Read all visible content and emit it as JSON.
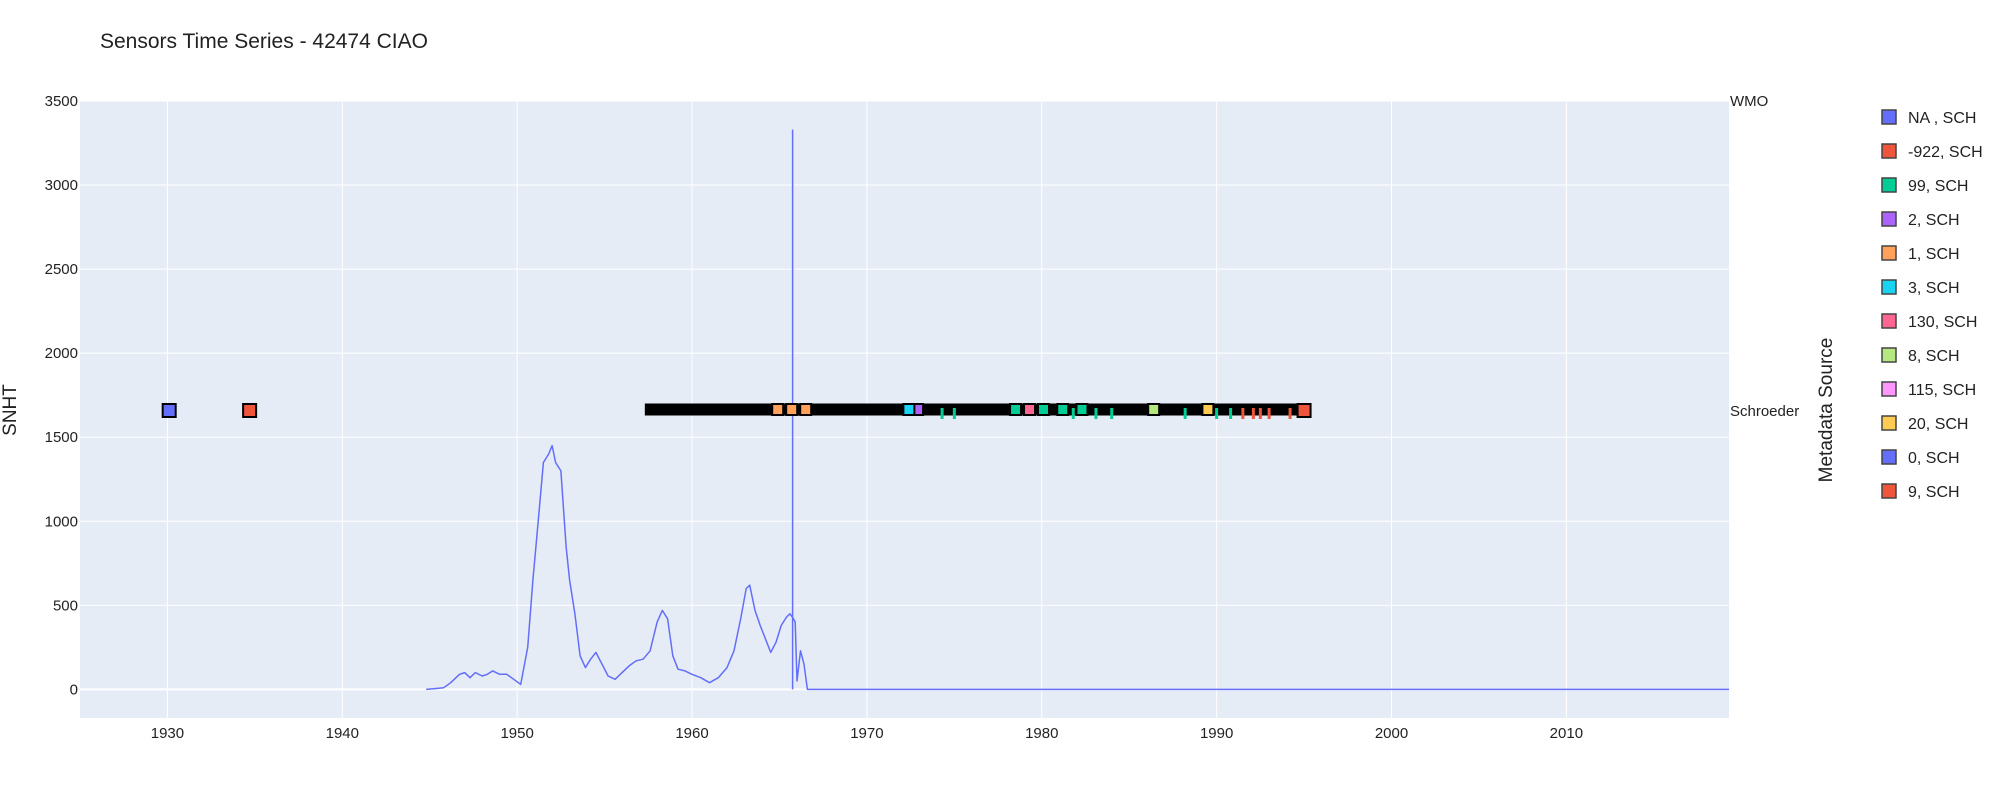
{
  "chart_data": {
    "type": "line",
    "title": "Sensors Time Series - 42474 CIAO",
    "xlabel": "",
    "ylabel": "SNHT",
    "xlim": [
      1925,
      2019.3
    ],
    "ylim": [
      -170,
      3500
    ],
    "x_ticks": [
      "1930",
      "1940",
      "1950",
      "1960",
      "1970",
      "1980",
      "1990",
      "2000",
      "2010"
    ],
    "y_ticks": [
      "0",
      "500",
      "1000",
      "1500",
      "2000",
      "2500",
      "3000",
      "3500"
    ],
    "grid": true,
    "legend_title": "Metadata Source",
    "legend_position": "right",
    "right_labels": [
      "WMO",
      "Schroeder"
    ],
    "series": [
      {
        "color": "#636efa",
        "x": [
          1944.8,
          1945.3,
          1945.8,
          1946.2,
          1946.7,
          1947.0,
          1947.3,
          1947.6,
          1948.0,
          1948.3,
          1948.6,
          1949.0,
          1949.4,
          1949.8,
          1950.2,
          1950.6,
          1950.9,
          1951.2,
          1951.5,
          1951.8,
          1952.0,
          1952.2,
          1952.5,
          1952.8,
          1953.0,
          1953.3,
          1953.6,
          1953.9,
          1954.2,
          1954.5,
          1954.9,
          1955.2,
          1955.6,
          1956.0,
          1956.4,
          1956.8,
          1957.2,
          1957.6,
          1958.0,
          1958.3,
          1958.6,
          1958.9,
          1959.2,
          1959.6,
          1960.0,
          1960.5,
          1961.0,
          1961.5,
          1962.0,
          1962.4,
          1962.8,
          1963.1,
          1963.3,
          1963.6,
          1963.9,
          1964.2,
          1964.5,
          1964.8,
          1965.1,
          1965.4,
          1965.6,
          1965.8,
          1965.9,
          1966.0,
          1966.2,
          1966.4,
          1966.6,
          2019.3
        ],
        "y": [
          0,
          5,
          10,
          40,
          90,
          100,
          70,
          100,
          80,
          90,
          110,
          90,
          90,
          60,
          30,
          250,
          650,
          1000,
          1350,
          1400,
          1450,
          1350,
          1300,
          850,
          650,
          450,
          200,
          130,
          180,
          220,
          140,
          80,
          60,
          100,
          140,
          170,
          180,
          230,
          400,
          470,
          420,
          200,
          120,
          110,
          90,
          70,
          40,
          70,
          130,
          230,
          430,
          600,
          620,
          470,
          380,
          300,
          220,
          280,
          380,
          430,
          450,
          420,
          400,
          50,
          230,
          150,
          0,
          0
        ]
      },
      {
        "color": "#636efa",
        "x": [
          1965.75,
          1965.75
        ],
        "y": [
          0,
          3330
        ]
      }
    ],
    "markers": [
      {
        "name": "NA , SCH",
        "color": "#636efa",
        "points": [
          1930.1
        ]
      },
      {
        "name": "-922, SCH",
        "color": "#ef553b",
        "points": [
          1934.7,
          1995.0
        ]
      },
      {
        "name": "99, SCH",
        "color": "#00cc96",
        "points": [
          1978.5,
          1980.1,
          1981.2,
          1982.3,
          1974.3,
          1975.0,
          1981.8,
          1983.1,
          1984.0,
          1988.2,
          1990.0,
          1990.8
        ]
      },
      {
        "name": "2, SCH",
        "color": "#ab63fa",
        "points": [
          1972.9
        ]
      },
      {
        "name": "1, SCH",
        "color": "#ffa15a",
        "points": [
          1964.9,
          1965.7,
          1966.5
        ]
      },
      {
        "name": "3, SCH",
        "color": "#19d3f3",
        "points": [
          1972.4
        ]
      },
      {
        "name": "130, SCH",
        "color": "#ff6692",
        "points": [
          1979.3
        ]
      },
      {
        "name": "8, SCH",
        "color": "#b6e880",
        "points": [
          1986.4
        ]
      },
      {
        "name": "115, SCH",
        "color": "#ff97ff",
        "points": []
      },
      {
        "name": "20, SCH",
        "color": "#fecb52",
        "points": [
          1989.5
        ]
      },
      {
        "name": "0, SCH",
        "color": "#636efa",
        "points": []
      },
      {
        "name": "9, SCH",
        "color": "#ef553b",
        "points": [
          1991.5,
          1992.1,
          1992.5,
          1993.0,
          1994.2
        ]
      }
    ],
    "black_band": [
      1957.3,
      1995.3
    ],
    "band_level": 1665
  }
}
